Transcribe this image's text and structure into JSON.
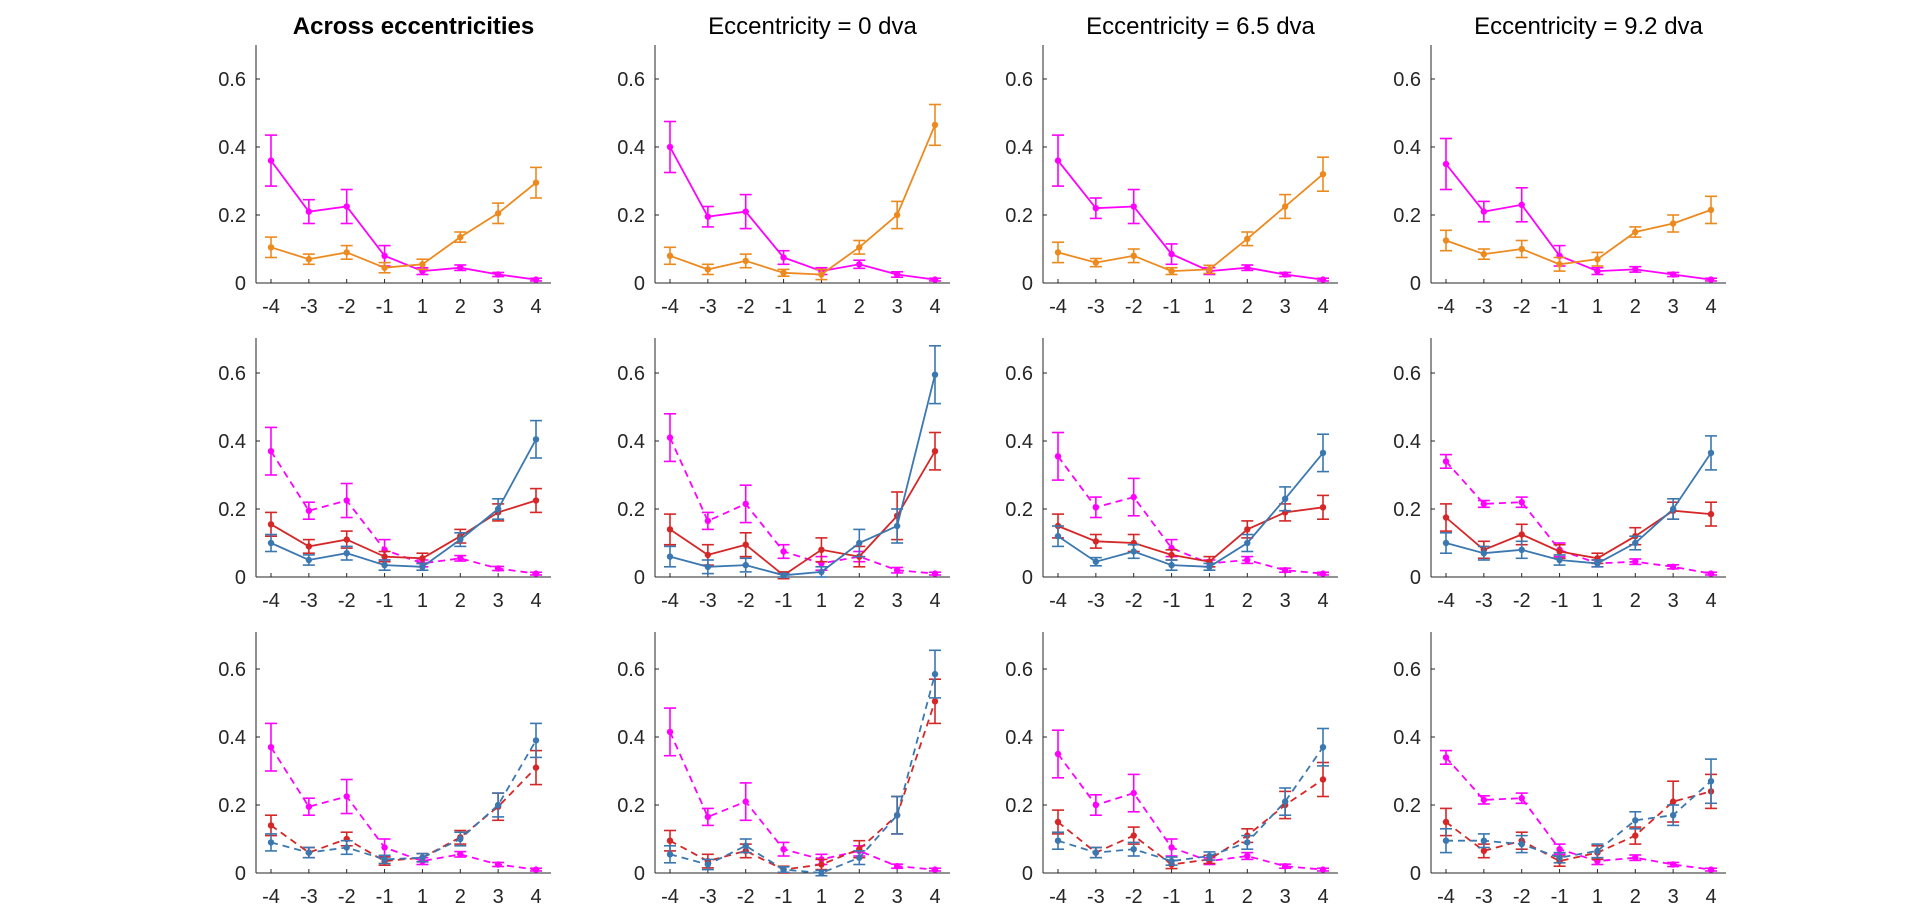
{
  "figure": {
    "columns": [
      "Across eccentricities",
      "Eccentricity = 0 dva",
      "Eccentricity = 6.5 dva",
      "Eccentricity = 9.2 dva"
    ],
    "bold_first_title": true
  },
  "colors": {
    "magenta": "#FF00FF",
    "orange": "#ED8A1F",
    "blue": "#3B78B0",
    "red": "#D62728",
    "axis": "#262626"
  },
  "chart_data": [
    {
      "type": "line",
      "title": "Across eccentricities",
      "row": 1,
      "col": 1,
      "x": [
        -4,
        -3,
        -2,
        -1,
        1,
        2,
        3,
        4
      ],
      "ylim": [
        0,
        0.7
      ],
      "yticks": [
        0,
        0.2,
        0.4,
        0.6
      ],
      "series": [
        {
          "color": "magenta",
          "dash": false,
          "values": [
            0.36,
            0.21,
            0.225,
            0.08,
            0.035,
            0.045,
            0.025,
            0.01
          ],
          "errors": [
            0.075,
            0.035,
            0.05,
            0.03,
            0.01,
            0.008,
            0.006,
            0.004
          ]
        },
        {
          "color": "orange",
          "dash": false,
          "values": [
            0.105,
            0.07,
            0.09,
            0.045,
            0.055,
            0.135,
            0.205,
            0.295
          ],
          "errors": [
            0.03,
            0.015,
            0.02,
            0.015,
            0.015,
            0.015,
            0.03,
            0.045
          ]
        }
      ]
    },
    {
      "type": "line",
      "title": "Eccentricity = 0 dva",
      "row": 1,
      "col": 2,
      "x": [
        -4,
        -3,
        -2,
        -1,
        1,
        2,
        3,
        4
      ],
      "ylim": [
        0,
        0.7
      ],
      "yticks": [
        0,
        0.2,
        0.4,
        0.6
      ],
      "series": [
        {
          "color": "magenta",
          "dash": false,
          "values": [
            0.4,
            0.195,
            0.21,
            0.075,
            0.035,
            0.055,
            0.025,
            0.01
          ],
          "errors": [
            0.075,
            0.03,
            0.05,
            0.02,
            0.01,
            0.012,
            0.008,
            0.004
          ]
        },
        {
          "color": "orange",
          "dash": false,
          "values": [
            0.08,
            0.04,
            0.065,
            0.03,
            0.025,
            0.105,
            0.2,
            0.465
          ],
          "errors": [
            0.025,
            0.015,
            0.02,
            0.01,
            0.015,
            0.02,
            0.04,
            0.06
          ]
        }
      ]
    },
    {
      "type": "line",
      "title": "Eccentricity = 6.5 dva",
      "row": 1,
      "col": 3,
      "x": [
        -4,
        -3,
        -2,
        -1,
        1,
        2,
        3,
        4
      ],
      "ylim": [
        0,
        0.7
      ],
      "yticks": [
        0,
        0.2,
        0.4,
        0.6
      ],
      "series": [
        {
          "color": "magenta",
          "dash": false,
          "values": [
            0.36,
            0.22,
            0.225,
            0.085,
            0.035,
            0.045,
            0.025,
            0.01
          ],
          "errors": [
            0.075,
            0.03,
            0.05,
            0.03,
            0.01,
            0.008,
            0.006,
            0.004
          ]
        },
        {
          "color": "orange",
          "dash": false,
          "values": [
            0.09,
            0.06,
            0.08,
            0.035,
            0.04,
            0.13,
            0.225,
            0.32
          ],
          "errors": [
            0.03,
            0.012,
            0.02,
            0.01,
            0.012,
            0.02,
            0.035,
            0.05
          ]
        }
      ]
    },
    {
      "type": "line",
      "title": "Eccentricity = 9.2 dva",
      "row": 1,
      "col": 4,
      "x": [
        -4,
        -3,
        -2,
        -1,
        1,
        2,
        3,
        4
      ],
      "ylim": [
        0,
        0.7
      ],
      "yticks": [
        0,
        0.2,
        0.4,
        0.6
      ],
      "series": [
        {
          "color": "magenta",
          "dash": false,
          "values": [
            0.35,
            0.21,
            0.23,
            0.08,
            0.035,
            0.04,
            0.025,
            0.01
          ],
          "errors": [
            0.075,
            0.03,
            0.05,
            0.03,
            0.01,
            0.008,
            0.006,
            0.004
          ]
        },
        {
          "color": "orange",
          "dash": false,
          "values": [
            0.125,
            0.085,
            0.1,
            0.055,
            0.07,
            0.15,
            0.175,
            0.215
          ],
          "errors": [
            0.03,
            0.015,
            0.025,
            0.02,
            0.02,
            0.015,
            0.025,
            0.04
          ]
        }
      ]
    },
    {
      "type": "line",
      "row": 2,
      "col": 1,
      "x": [
        -4,
        -3,
        -2,
        -1,
        1,
        2,
        3,
        4
      ],
      "ylim": [
        0,
        0.7
      ],
      "yticks": [
        0,
        0.2,
        0.4,
        0.6
      ],
      "series": [
        {
          "color": "magenta",
          "dash": true,
          "values": [
            0.37,
            0.195,
            0.225,
            0.08,
            0.04,
            0.055,
            0.025,
            0.01
          ],
          "errors": [
            0.07,
            0.025,
            0.05,
            0.03,
            0.01,
            0.008,
            0.006,
            0.004
          ]
        },
        {
          "color": "red",
          "dash": false,
          "values": [
            0.155,
            0.09,
            0.11,
            0.06,
            0.055,
            0.12,
            0.19,
            0.225
          ],
          "errors": [
            0.035,
            0.02,
            0.025,
            0.015,
            0.015,
            0.02,
            0.025,
            0.035
          ]
        },
        {
          "color": "blue",
          "dash": false,
          "values": [
            0.1,
            0.05,
            0.07,
            0.035,
            0.03,
            0.11,
            0.2,
            0.405
          ],
          "errors": [
            0.025,
            0.015,
            0.02,
            0.015,
            0.01,
            0.02,
            0.03,
            0.055
          ]
        }
      ]
    },
    {
      "type": "line",
      "row": 2,
      "col": 2,
      "x": [
        -4,
        -3,
        -2,
        -1,
        1,
        2,
        3,
        4
      ],
      "ylim": [
        0,
        0.7
      ],
      "yticks": [
        0,
        0.2,
        0.4,
        0.6
      ],
      "series": [
        {
          "color": "magenta",
          "dash": true,
          "values": [
            0.41,
            0.165,
            0.215,
            0.075,
            0.04,
            0.06,
            0.02,
            0.01
          ],
          "errors": [
            0.07,
            0.025,
            0.055,
            0.02,
            0.02,
            0.015,
            0.008,
            0.004
          ]
        },
        {
          "color": "red",
          "dash": false,
          "values": [
            0.14,
            0.065,
            0.095,
            0.005,
            0.08,
            0.06,
            0.18,
            0.37
          ],
          "errors": [
            0.045,
            0.03,
            0.035,
            0.01,
            0.035,
            0.03,
            0.07,
            0.055
          ]
        },
        {
          "color": "blue",
          "dash": false,
          "values": [
            0.06,
            0.03,
            0.035,
            0.005,
            0.015,
            0.1,
            0.15,
            0.595
          ],
          "errors": [
            0.03,
            0.02,
            0.02,
            0.005,
            0.015,
            0.04,
            0.05,
            0.085
          ]
        }
      ]
    },
    {
      "type": "line",
      "row": 2,
      "col": 3,
      "x": [
        -4,
        -3,
        -2,
        -1,
        1,
        2,
        3,
        4
      ],
      "ylim": [
        0,
        0.7
      ],
      "yticks": [
        0,
        0.2,
        0.4,
        0.6
      ],
      "series": [
        {
          "color": "magenta",
          "dash": true,
          "values": [
            0.355,
            0.205,
            0.235,
            0.085,
            0.04,
            0.05,
            0.02,
            0.01
          ],
          "errors": [
            0.07,
            0.03,
            0.055,
            0.025,
            0.01,
            0.01,
            0.006,
            0.004
          ]
        },
        {
          "color": "red",
          "dash": false,
          "values": [
            0.15,
            0.105,
            0.1,
            0.065,
            0.045,
            0.14,
            0.19,
            0.205
          ],
          "errors": [
            0.035,
            0.02,
            0.025,
            0.015,
            0.015,
            0.025,
            0.025,
            0.035
          ]
        },
        {
          "color": "blue",
          "dash": false,
          "values": [
            0.12,
            0.045,
            0.075,
            0.035,
            0.03,
            0.1,
            0.23,
            0.365
          ],
          "errors": [
            0.03,
            0.012,
            0.02,
            0.015,
            0.01,
            0.025,
            0.035,
            0.055
          ]
        }
      ]
    },
    {
      "type": "line",
      "row": 2,
      "col": 4,
      "x": [
        -4,
        -3,
        -2,
        -1,
        1,
        2,
        3,
        4
      ],
      "ylim": [
        0,
        0.7
      ],
      "yticks": [
        0,
        0.2,
        0.4,
        0.6
      ],
      "series": [
        {
          "color": "magenta",
          "dash": true,
          "values": [
            0.34,
            0.215,
            0.22,
            0.08,
            0.04,
            0.045,
            0.03,
            0.01
          ],
          "errors": [
            0.02,
            0.01,
            0.015,
            0.02,
            0.01,
            0.008,
            0.006,
            0.004
          ]
        },
        {
          "color": "red",
          "dash": false,
          "values": [
            0.175,
            0.08,
            0.125,
            0.075,
            0.055,
            0.12,
            0.195,
            0.185
          ],
          "errors": [
            0.04,
            0.025,
            0.03,
            0.02,
            0.015,
            0.025,
            0.025,
            0.035
          ]
        },
        {
          "color": "blue",
          "dash": false,
          "values": [
            0.1,
            0.07,
            0.08,
            0.05,
            0.04,
            0.1,
            0.2,
            0.365
          ],
          "errors": [
            0.03,
            0.02,
            0.025,
            0.015,
            0.01,
            0.02,
            0.03,
            0.05
          ]
        }
      ]
    },
    {
      "type": "line",
      "row": 3,
      "col": 1,
      "x": [
        -4,
        -3,
        -2,
        -1,
        1,
        2,
        3,
        4
      ],
      "ylim": [
        0,
        0.7
      ],
      "yticks": [
        0,
        0.2,
        0.4,
        0.6
      ],
      "series": [
        {
          "color": "magenta",
          "dash": true,
          "values": [
            0.37,
            0.195,
            0.225,
            0.075,
            0.035,
            0.055,
            0.025,
            0.01
          ],
          "errors": [
            0.07,
            0.025,
            0.05,
            0.025,
            0.01,
            0.008,
            0.006,
            0.004
          ]
        },
        {
          "color": "red",
          "dash": true,
          "values": [
            0.14,
            0.06,
            0.1,
            0.035,
            0.045,
            0.105,
            0.195,
            0.31
          ],
          "errors": [
            0.03,
            0.015,
            0.02,
            0.012,
            0.012,
            0.02,
            0.04,
            0.05
          ]
        },
        {
          "color": "blue",
          "dash": true,
          "values": [
            0.09,
            0.06,
            0.075,
            0.04,
            0.045,
            0.1,
            0.2,
            0.39
          ],
          "errors": [
            0.025,
            0.015,
            0.02,
            0.012,
            0.012,
            0.02,
            0.035,
            0.05
          ]
        }
      ]
    },
    {
      "type": "line",
      "row": 3,
      "col": 2,
      "x": [
        -4,
        -3,
        -2,
        -1,
        1,
        2,
        3,
        4
      ],
      "ylim": [
        0,
        0.7
      ],
      "yticks": [
        0,
        0.2,
        0.4,
        0.6
      ],
      "series": [
        {
          "color": "magenta",
          "dash": true,
          "values": [
            0.415,
            0.165,
            0.21,
            0.07,
            0.04,
            0.065,
            0.02,
            0.01
          ],
          "errors": [
            0.07,
            0.025,
            0.055,
            0.02,
            0.015,
            0.015,
            0.006,
            0.004
          ]
        },
        {
          "color": "red",
          "dash": true,
          "values": [
            0.095,
            0.035,
            0.065,
            0.01,
            0.025,
            0.07,
            0.17,
            0.505
          ],
          "errors": [
            0.03,
            0.02,
            0.02,
            0.01,
            0.015,
            0.025,
            0.055,
            0.065
          ]
        },
        {
          "color": "blue",
          "dash": true,
          "values": [
            0.055,
            0.025,
            0.08,
            0.01,
            0.0,
            0.045,
            0.17,
            0.585
          ],
          "errors": [
            0.025,
            0.015,
            0.02,
            0.008,
            0.008,
            0.02,
            0.055,
            0.07
          ]
        }
      ]
    },
    {
      "type": "line",
      "row": 3,
      "col": 3,
      "x": [
        -4,
        -3,
        -2,
        -1,
        1,
        2,
        3,
        4
      ],
      "ylim": [
        0,
        0.7
      ],
      "yticks": [
        0,
        0.2,
        0.4,
        0.6
      ],
      "series": [
        {
          "color": "magenta",
          "dash": true,
          "values": [
            0.35,
            0.2,
            0.235,
            0.075,
            0.035,
            0.05,
            0.02,
            0.01
          ],
          "errors": [
            0.07,
            0.03,
            0.055,
            0.025,
            0.01,
            0.01,
            0.006,
            0.004
          ]
        },
        {
          "color": "red",
          "dash": true,
          "values": [
            0.15,
            0.06,
            0.11,
            0.025,
            0.04,
            0.11,
            0.2,
            0.275
          ],
          "errors": [
            0.035,
            0.015,
            0.025,
            0.012,
            0.012,
            0.02,
            0.04,
            0.05
          ]
        },
        {
          "color": "blue",
          "dash": true,
          "values": [
            0.095,
            0.06,
            0.07,
            0.035,
            0.05,
            0.09,
            0.21,
            0.37
          ],
          "errors": [
            0.025,
            0.015,
            0.02,
            0.012,
            0.012,
            0.02,
            0.04,
            0.055
          ]
        }
      ]
    },
    {
      "type": "line",
      "row": 3,
      "col": 4,
      "x": [
        -4,
        -3,
        -2,
        -1,
        1,
        2,
        3,
        4
      ],
      "ylim": [
        0,
        0.7
      ],
      "yticks": [
        0,
        0.2,
        0.4,
        0.6
      ],
      "series": [
        {
          "color": "magenta",
          "dash": true,
          "values": [
            0.34,
            0.215,
            0.22,
            0.07,
            0.035,
            0.045,
            0.025,
            0.01
          ],
          "errors": [
            0.02,
            0.012,
            0.015,
            0.015,
            0.01,
            0.008,
            0.006,
            0.004
          ]
        },
        {
          "color": "red",
          "dash": true,
          "values": [
            0.15,
            0.065,
            0.095,
            0.035,
            0.06,
            0.11,
            0.21,
            0.24
          ],
          "errors": [
            0.04,
            0.02,
            0.025,
            0.015,
            0.02,
            0.025,
            0.06,
            0.05
          ]
        },
        {
          "color": "blue",
          "dash": true,
          "values": [
            0.095,
            0.095,
            0.085,
            0.045,
            0.065,
            0.155,
            0.17,
            0.27
          ],
          "errors": [
            0.035,
            0.02,
            0.025,
            0.015,
            0.02,
            0.025,
            0.03,
            0.065
          ]
        }
      ]
    }
  ]
}
